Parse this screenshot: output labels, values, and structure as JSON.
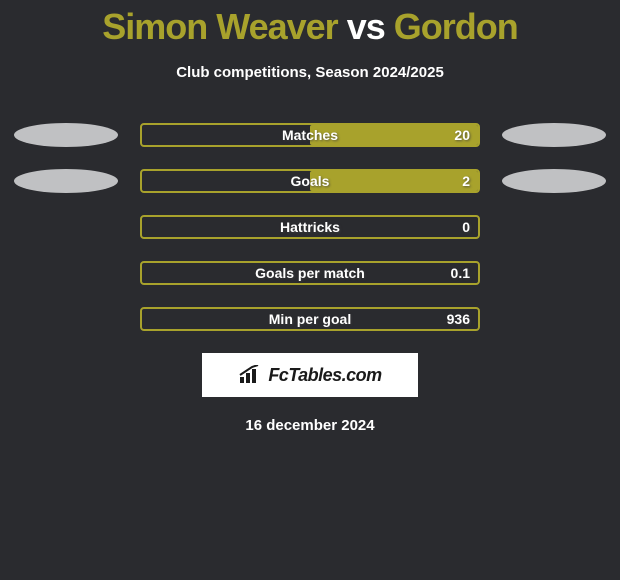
{
  "header": {
    "player1": "Simon Weaver",
    "vs": "vs",
    "player2": "Gordon",
    "subtitle": "Club competitions, Season 2024/2025"
  },
  "chart": {
    "type": "bar",
    "bar_border_color": "#a8a22c",
    "bar_fill_color": "#a8a22c",
    "ellipse_color": "#c0c1c3",
    "background_color": "#2a2b2f",
    "text_color": "#ffffff",
    "label_fontsize": 14,
    "rows": [
      {
        "label": "Matches",
        "value": "20",
        "fill_pct": 50,
        "left_ellipse": true,
        "right_ellipse": true
      },
      {
        "label": "Goals",
        "value": "2",
        "fill_pct": 50,
        "left_ellipse": true,
        "right_ellipse": true
      },
      {
        "label": "Hattricks",
        "value": "0",
        "fill_pct": 0,
        "left_ellipse": false,
        "right_ellipse": false
      },
      {
        "label": "Goals per match",
        "value": "0.1",
        "fill_pct": 0,
        "left_ellipse": false,
        "right_ellipse": false
      },
      {
        "label": "Min per goal",
        "value": "936",
        "fill_pct": 0,
        "left_ellipse": false,
        "right_ellipse": false
      }
    ]
  },
  "footer": {
    "logo_text": "FcTables.com",
    "date": "16 december 2024"
  }
}
